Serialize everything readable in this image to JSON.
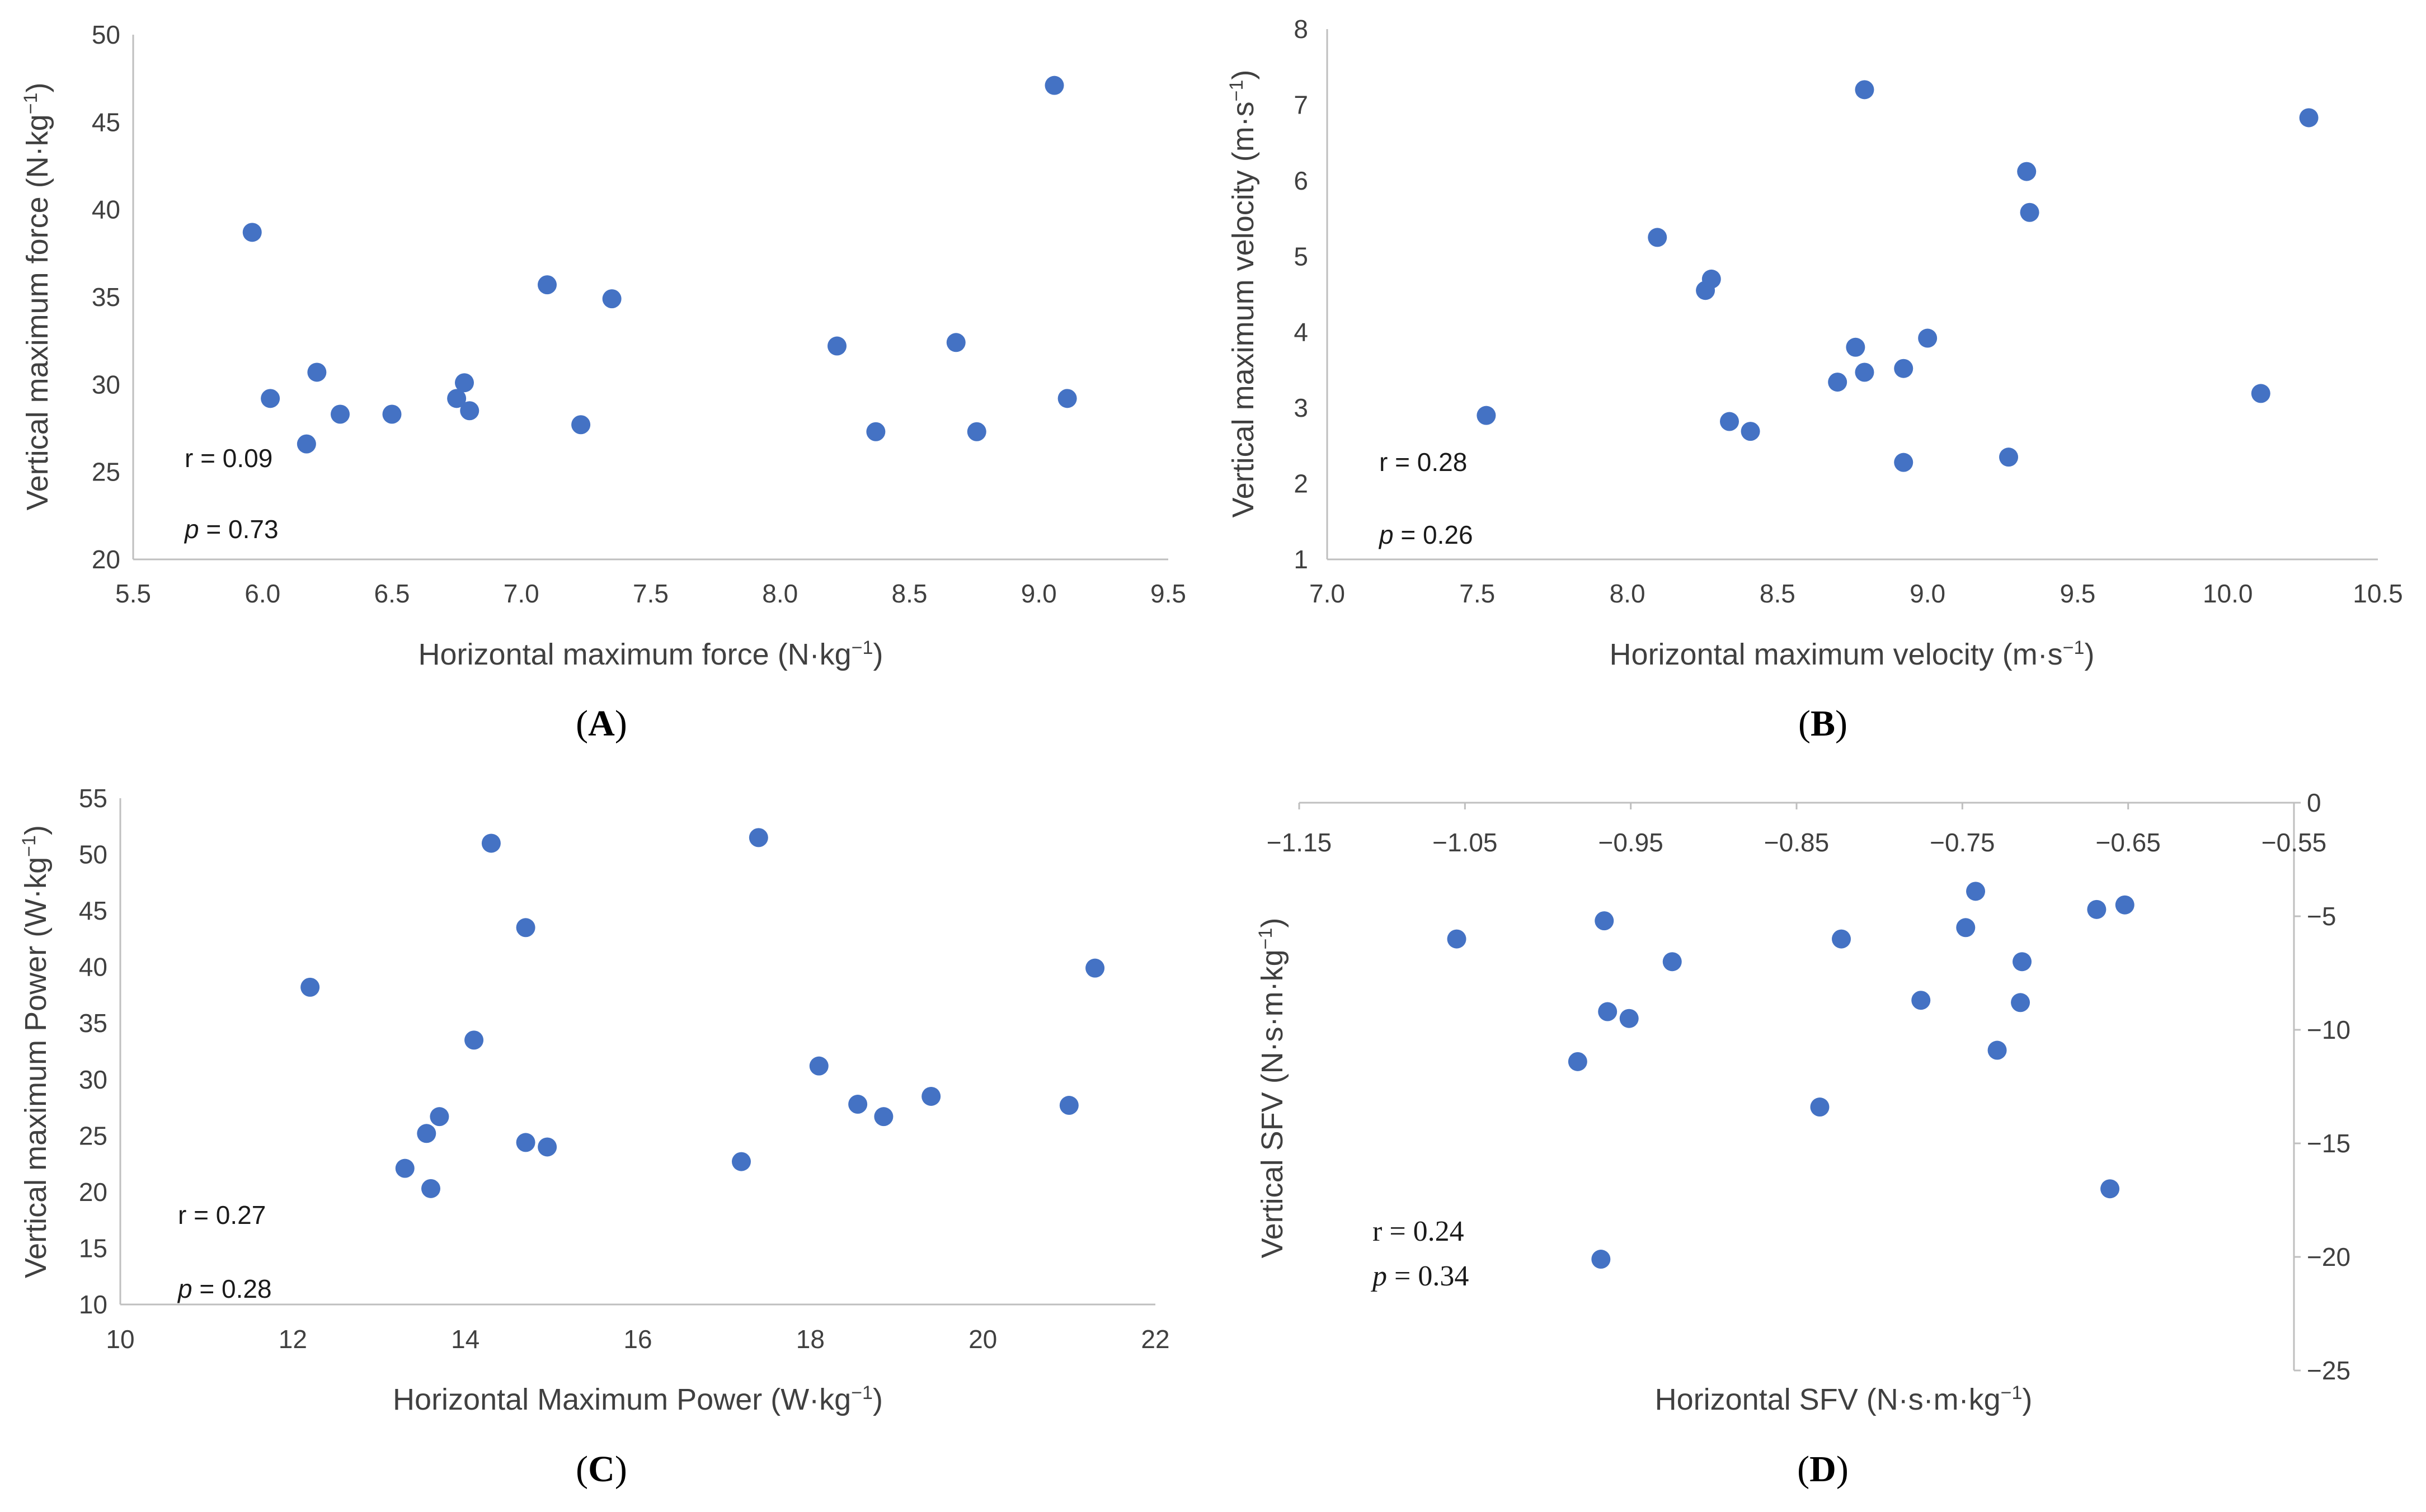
{
  "colors": {
    "marker": "#4472c4",
    "axis": "#bfbfbf",
    "text": "#404040"
  },
  "chart_data": [
    {
      "panel": "A",
      "panel_label": "A",
      "type": "scatter",
      "xlabel": "Horizontal maximum force (N·kg",
      "xlabel_sup": "−1",
      "xlabel_end": ")",
      "ylabel": "Vertical maximum force (N·kg",
      "ylabel_sup": "−1",
      "ylabel_end": ")",
      "xlim": [
        5.5,
        9.5
      ],
      "ylim": [
        20,
        50
      ],
      "xticks": [
        "5.5",
        "6.0",
        "6.5",
        "7.0",
        "7.5",
        "8.0",
        "8.5",
        "9.0",
        "9.5"
      ],
      "yticks": [
        "20",
        "25",
        "30",
        "35",
        "40",
        "45",
        "50"
      ],
      "r_text": "r = 0.09",
      "p_label": "p",
      "p_text": " = 0.73",
      "x": [
        5.96,
        6.03,
        6.17,
        6.21,
        6.3,
        6.5,
        6.75,
        6.78,
        6.8,
        7.1,
        7.23,
        7.35,
        8.22,
        8.37,
        8.68,
        8.76,
        9.06,
        9.11
      ],
      "y": [
        38.7,
        29.2,
        26.6,
        30.7,
        28.3,
        28.3,
        29.2,
        30.1,
        28.5,
        35.7,
        27.7,
        34.9,
        32.2,
        27.3,
        32.4,
        27.3,
        47.1,
        29.2
      ]
    },
    {
      "panel": "B",
      "panel_label": "B",
      "type": "scatter",
      "xlabel": "Horizontal maximum velocity (m·s",
      "xlabel_sup": "−1",
      "xlabel_end": ")",
      "ylabel": "Vertical maximum velocity (m·s",
      "ylabel_sup": "−1",
      "ylabel_end": ")",
      "xlim": [
        7.0,
        10.5
      ],
      "ylim": [
        1,
        8
      ],
      "xticks": [
        "7.0",
        "7.5",
        "8.0",
        "8.5",
        "9.0",
        "9.5",
        "10.0",
        "10.5"
      ],
      "yticks": [
        "1",
        "2",
        "3",
        "4",
        "5",
        "6",
        "7",
        "8"
      ],
      "r_text": "r = 0.28",
      "p_label": "p",
      "p_text": " = 0.26",
      "x": [
        7.53,
        8.1,
        8.26,
        8.28,
        8.34,
        8.41,
        8.7,
        8.76,
        8.79,
        8.79,
        8.92,
        8.92,
        9.0,
        9.27,
        9.33,
        9.34,
        10.11,
        10.27
      ],
      "y": [
        2.9,
        5.25,
        4.55,
        4.7,
        2.82,
        2.69,
        3.34,
        3.8,
        7.2,
        3.47,
        3.52,
        2.28,
        3.92,
        2.35,
        6.12,
        5.58,
        3.19,
        6.83
      ]
    },
    {
      "panel": "C",
      "panel_label": "C",
      "type": "scatter",
      "xlabel": "Horizontal Maximum Power (W·kg",
      "xlabel_sup": "−1",
      "xlabel_end": ")",
      "ylabel": "Vertical maximum  Power (W·kg",
      "ylabel_sup": "−1",
      "ylabel_end": ")",
      "xlim": [
        10,
        22
      ],
      "ylim": [
        10,
        55
      ],
      "xticks": [
        "10",
        "12",
        "14",
        "16",
        "18",
        "20",
        "22"
      ],
      "yticks": [
        "10",
        "15",
        "20",
        "25",
        "30",
        "35",
        "40",
        "45",
        "50",
        "55"
      ],
      "r_text": "r = 0.27",
      "p_label": "p",
      "p_text": " = 0.28",
      "x": [
        12.2,
        13.3,
        13.55,
        13.6,
        13.7,
        14.1,
        14.3,
        14.7,
        14.7,
        14.95,
        17.2,
        17.4,
        18.1,
        18.55,
        18.85,
        19.4,
        21.0,
        21.3
      ],
      "y": [
        38.2,
        22.1,
        25.2,
        20.3,
        26.7,
        33.5,
        51.0,
        43.5,
        24.4,
        24.0,
        22.7,
        51.5,
        31.2,
        27.8,
        26.7,
        28.5,
        27.7,
        39.9
      ]
    },
    {
      "panel": "D",
      "panel_label": "D",
      "type": "scatter",
      "xlabel": "Horizontal SFV (N·s·m·kg",
      "xlabel_sup": "−1",
      "xlabel_end": ")",
      "ylabel": "Vertical SFV (N·s·m·kg",
      "ylabel_sup": "−1",
      "ylabel_end": ")",
      "xlim": [
        -1.15,
        -0.55
      ],
      "ylim": [
        -25,
        0
      ],
      "xticks": [
        "−1.15",
        "−1.05",
        "−0.95",
        "−0.85",
        "−0.75",
        "−0.65",
        "−0.55"
      ],
      "yticks": [
        "0",
        "−5",
        "−10",
        "−15",
        "−20",
        "−25"
      ],
      "r_text": "r = 0.24",
      "p_label": "p",
      "p_text": " = 0.34",
      "x": [
        -1.055,
        -0.982,
        -0.968,
        -0.966,
        -0.964,
        -0.951,
        -0.925,
        -0.836,
        -0.823,
        -0.775,
        -0.748,
        -0.742,
        -0.729,
        -0.715,
        -0.714,
        -0.669,
        -0.661,
        -0.652
      ],
      "y": [
        -6.0,
        -11.4,
        -20.1,
        -5.2,
        -9.2,
        -9.5,
        -7.0,
        -13.4,
        -6.0,
        -8.7,
        -5.5,
        -3.9,
        -10.9,
        -8.8,
        -7.0,
        -4.7,
        -17.0,
        -4.5
      ]
    }
  ]
}
